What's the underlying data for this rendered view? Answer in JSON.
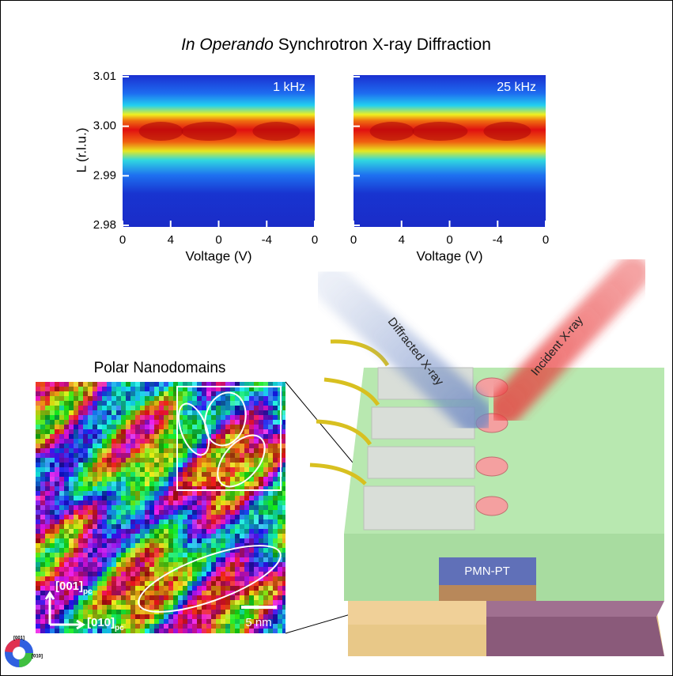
{
  "title_italic": "In Operando",
  "title_rest": "Synchrotron X-ray Diffraction",
  "heatmaps": [
    {
      "label": "1 kHz"
    },
    {
      "label": "25 kHz"
    }
  ],
  "y_axis": {
    "label": "L (r.l.u.)",
    "ticks": [
      "3.01",
      "3.00",
      "2.99",
      "2.98"
    ]
  },
  "x_axis": {
    "label": "Voltage (V)",
    "ticks": [
      "0",
      "4",
      "0",
      "-4",
      "0"
    ]
  },
  "nanodomains": {
    "title": "Polar Nanodomains",
    "axis_001": "[001]",
    "axis_010": "[010]",
    "sub": "pc",
    "scale": "5 nm"
  },
  "device": {
    "diffracted": "Diffracted X-ray",
    "incident": "Incident X-ray",
    "sample": "PMN-PT"
  },
  "color_wheel": {
    "top": "[001]",
    "right": "[010]"
  }
}
